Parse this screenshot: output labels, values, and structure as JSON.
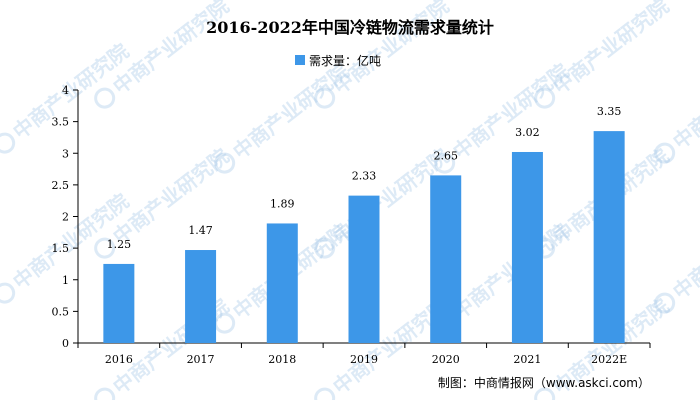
{
  "colors": {
    "bar": "#3d97e8",
    "axis": "#000000"
  },
  "watermark": {
    "text": "中商产业研究院",
    "icon": "zhongshang-logo-icon"
  },
  "source": "制图：中商情报网（www.askci.com）",
  "chart_data": {
    "type": "bar",
    "title": "2016-2022年中国冷链物流需求量统计",
    "categories": [
      "2016",
      "2017",
      "2018",
      "2019",
      "2020",
      "2021",
      "2022E"
    ],
    "series": [
      {
        "name": "需求量：亿吨",
        "values": [
          1.25,
          1.47,
          1.89,
          2.33,
          2.65,
          3.02,
          3.35
        ],
        "labels": [
          "1.25",
          "1.47",
          "1.89",
          "2.33",
          "2.65",
          "3.02",
          "3.35"
        ]
      }
    ],
    "ylim": [
      0,
      4
    ],
    "yticks": [
      "0",
      "0.5",
      "1",
      "1.5",
      "2",
      "2.5",
      "3",
      "3.5",
      "4"
    ],
    "legend": "top-center",
    "grid": false
  }
}
